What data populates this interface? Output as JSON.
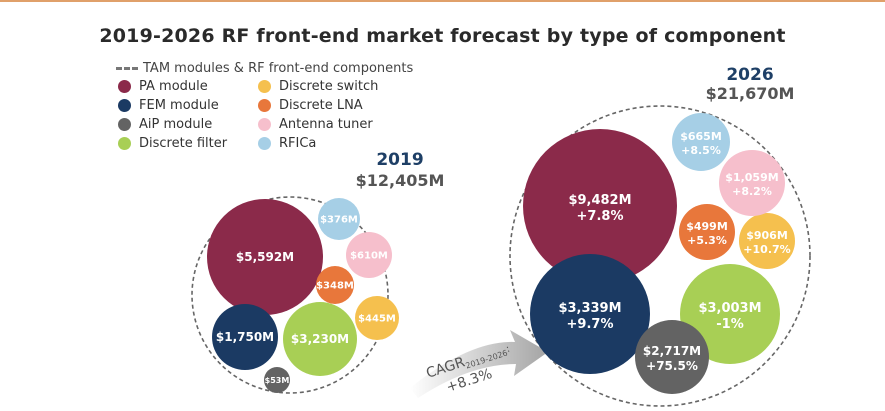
{
  "chart_data": {
    "type": "bubble",
    "title": "2019-2026 RF front-end market forecast by type of component",
    "legend": {
      "boundary_label": "TAM modules & RF front-end components",
      "items": [
        {
          "name": "PA module",
          "color": "#8b2a4a"
        },
        {
          "name": "Discrete switch",
          "color": "#f5c04e"
        },
        {
          "name": "FEM module",
          "color": "#1b3a63"
        },
        {
          "name": "Discrete LNA",
          "color": "#e8773b"
        },
        {
          "name": "AiP module",
          "color": "#636363"
        },
        {
          "name": "Antenna tuner",
          "color": "#f6bfcc"
        },
        {
          "name": "Discrete filter",
          "color": "#a8cf55"
        },
        {
          "name": "RFICa",
          "color": "#a6cfe6"
        }
      ]
    },
    "years": [
      {
        "year": "2019",
        "total": "$12,405M",
        "components": [
          {
            "name": "PA module",
            "label": "$5,592M",
            "growth": ""
          },
          {
            "name": "FEM module",
            "label": "$1,750M",
            "growth": ""
          },
          {
            "name": "Discrete filter",
            "label": "$3,230M",
            "growth": ""
          },
          {
            "name": "AiP module",
            "label": "$53M",
            "growth": ""
          },
          {
            "name": "Discrete LNA",
            "label": "$348M",
            "growth": ""
          },
          {
            "name": "Discrete switch",
            "label": "$445M",
            "growth": ""
          },
          {
            "name": "Antenna tuner",
            "label": "$610M",
            "growth": ""
          },
          {
            "name": "RFICa",
            "label": "$376M",
            "growth": ""
          }
        ]
      },
      {
        "year": "2026",
        "total": "$21,670M",
        "components": [
          {
            "name": "PA module",
            "label": "$9,482M",
            "growth": "+7.8%"
          },
          {
            "name": "FEM module",
            "label": "$3,339M",
            "growth": "+9.7%"
          },
          {
            "name": "Discrete filter",
            "label": "$3,003M",
            "growth": "-1%"
          },
          {
            "name": "AiP module",
            "label": "$2,717M",
            "growth": "+75.5%"
          },
          {
            "name": "Discrete LNA",
            "label": "$499M",
            "growth": "+5.3%"
          },
          {
            "name": "Discrete switch",
            "label": "$906M",
            "growth": "+10.7%"
          },
          {
            "name": "Antenna tuner",
            "label": "$1,059M",
            "growth": "+8.2%"
          },
          {
            "name": "RFICa",
            "label": "$665M",
            "growth": "+8.5%"
          }
        ]
      }
    ],
    "cagr": {
      "prefix": "CAGR",
      "period": "2019-2026",
      "suffix": ":",
      "value": "+8.3%"
    }
  }
}
